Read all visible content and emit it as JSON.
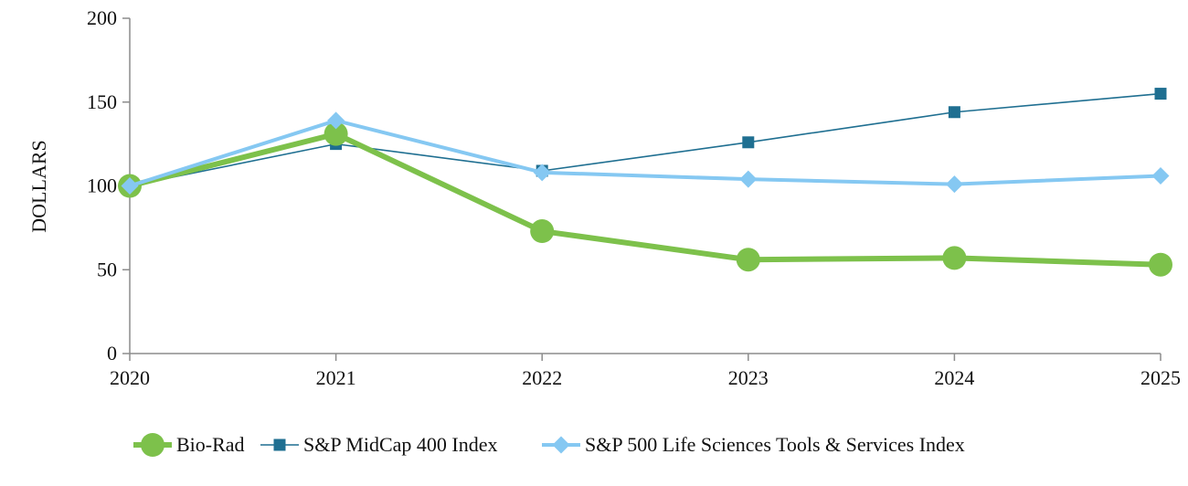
{
  "chart_data": {
    "type": "line",
    "x": [
      "2020",
      "2021",
      "2022",
      "2023",
      "2024",
      "2025"
    ],
    "ylabel": "DOLLARS",
    "xlabel": "",
    "title": "",
    "ylim": [
      0,
      200
    ],
    "yticks": [
      0,
      50,
      100,
      150,
      200
    ],
    "grid": false,
    "legend_position": "bottom",
    "series": [
      {
        "name": "Bio-Rad",
        "values": [
          100,
          131,
          73,
          56,
          57,
          53
        ],
        "color": "#7dc14b",
        "marker": "circle"
      },
      {
        "name": "S&P MidCap 400 Index",
        "values": [
          100,
          125,
          109,
          126,
          144,
          155
        ],
        "color": "#1f6f91",
        "marker": "square"
      },
      {
        "name": "S&P 500 Life Sciences Tools & Services Index",
        "values": [
          100,
          139,
          108,
          104,
          101,
          106
        ],
        "color": "#85c8f2",
        "marker": "diamond"
      }
    ]
  }
}
